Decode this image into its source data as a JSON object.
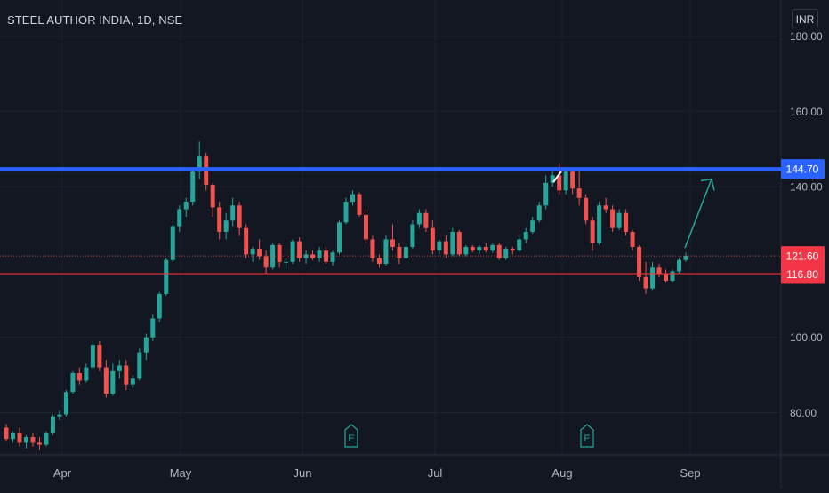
{
  "header": {
    "symbol_title": "STEEL AUTHOR INDIA, 1D, NSE",
    "currency": "INR"
  },
  "colors": {
    "background": "#131722",
    "grid": "#1e222d",
    "text": "#d1d4dc",
    "up": "#26a69a",
    "down": "#ef5350",
    "resistance_line": "#2962ff",
    "support_line": "#f23645",
    "arrow": "#26a69a"
  },
  "chart_data": {
    "type": "candlestick",
    "ylim": [
      70,
      178
    ],
    "y_ticks": [
      "180.00",
      "160.00",
      "140.00",
      "100.00",
      "80.00"
    ],
    "x_ticks": [
      "Apr",
      "May",
      "Jun",
      "Jul",
      "Aug",
      "Sep"
    ],
    "grid": true,
    "price_labels": [
      {
        "text": "144.70",
        "value": 144.7,
        "kind": "resistance"
      },
      {
        "text": "121.60",
        "value": 121.6,
        "kind": "last"
      },
      {
        "text": "116.80",
        "value": 116.8,
        "kind": "support"
      }
    ],
    "horizontal_lines": [
      {
        "value": 144.7,
        "kind": "resistance"
      },
      {
        "value": 116.8,
        "kind": "support"
      }
    ],
    "earnings_markers": [
      {
        "label": "E",
        "position": "mid-May"
      },
      {
        "label": "E",
        "position": "mid-Aug"
      }
    ],
    "projection_arrow": {
      "from": 121.6,
      "to": 142.5
    },
    "candles": [
      [
        76,
        77,
        72.5,
        73
      ],
      [
        73,
        75,
        72,
        74.5
      ],
      [
        74.5,
        76,
        71,
        72
      ],
      [
        72,
        74,
        70.5,
        73.5
      ],
      [
        73.5,
        74.5,
        71,
        72
      ],
      [
        72,
        73.5,
        70,
        71.5
      ],
      [
        71.5,
        75,
        71,
        74.5
      ],
      [
        74.5,
        79.5,
        74,
        79
      ],
      [
        79,
        80.5,
        78,
        79.5
      ],
      [
        79.5,
        86,
        79,
        85.5
      ],
      [
        85.5,
        91,
        85,
        90.5
      ],
      [
        90.5,
        92,
        87.5,
        88.5
      ],
      [
        88.5,
        93,
        88,
        92
      ],
      [
        92,
        99,
        91.5,
        98
      ],
      [
        98,
        99,
        91,
        92
      ],
      [
        92,
        94,
        84,
        85
      ],
      [
        85,
        93,
        84.5,
        91
      ],
      [
        91,
        94,
        89,
        92.5
      ],
      [
        92.5,
        94,
        86,
        87.5
      ],
      [
        87.5,
        90,
        86.5,
        89
      ],
      [
        89,
        97,
        88.5,
        96
      ],
      [
        96,
        101,
        94,
        100
      ],
      [
        100,
        106,
        99,
        105
      ],
      [
        105,
        112,
        104,
        111.5
      ],
      [
        111.5,
        121,
        111,
        120.5
      ],
      [
        120.5,
        130,
        120,
        129.5
      ],
      [
        129.5,
        135,
        128,
        134
      ],
      [
        134,
        137,
        132,
        136
      ],
      [
        136,
        145,
        135,
        144
      ],
      [
        144,
        152,
        142,
        148
      ],
      [
        148,
        149,
        139,
        140.5
      ],
      [
        140.5,
        141,
        132,
        134.5
      ],
      [
        134.5,
        136,
        126,
        128
      ],
      [
        128,
        133,
        126,
        131
      ],
      [
        131,
        137,
        129.5,
        135
      ],
      [
        135,
        136,
        127,
        129
      ],
      [
        129,
        130,
        121,
        122
      ],
      [
        122,
        124,
        120,
        123.5
      ],
      [
        123.5,
        126,
        120.5,
        121.5
      ],
      [
        121.5,
        123,
        117,
        118.5
      ],
      [
        118.5,
        125,
        118,
        124.5
      ],
      [
        124.5,
        125,
        118.5,
        120
      ],
      [
        120,
        121,
        118,
        120
      ],
      [
        120,
        126,
        119.5,
        125.5
      ],
      [
        125.5,
        126.5,
        120,
        121
      ],
      [
        121,
        123,
        119.5,
        122
      ],
      [
        122,
        123,
        120.5,
        121
      ],
      [
        121,
        124,
        120,
        123
      ],
      [
        123,
        124,
        119.5,
        120
      ],
      [
        120,
        123,
        119,
        122.5
      ],
      [
        122.5,
        131,
        122,
        130.5
      ],
      [
        130.5,
        137,
        130,
        136
      ],
      [
        136,
        139,
        135,
        138
      ],
      [
        138,
        138.5,
        132,
        132.5
      ],
      [
        132.5,
        134,
        125,
        126
      ],
      [
        126,
        127,
        120,
        121
      ],
      [
        121,
        122,
        118.5,
        119.5
      ],
      [
        119.5,
        127,
        119,
        126
      ],
      [
        126,
        130,
        123,
        124
      ],
      [
        124,
        125,
        119.5,
        121
      ],
      [
        121,
        124.5,
        120.5,
        124
      ],
      [
        124,
        131,
        123.5,
        130
      ],
      [
        130,
        134,
        129,
        133
      ],
      [
        133,
        134,
        128,
        129
      ],
      [
        129,
        131,
        122,
        123
      ],
      [
        123,
        126,
        122,
        125.5
      ],
      [
        125.5,
        127,
        121,
        122
      ],
      [
        122,
        129,
        121.5,
        128
      ],
      [
        128,
        128.5,
        121.5,
        122
      ],
      [
        122,
        124.5,
        121.5,
        124
      ],
      [
        124,
        124.5,
        122.5,
        123
      ],
      [
        123,
        124.5,
        122,
        124
      ],
      [
        124,
        125,
        122.5,
        123
      ],
      [
        123,
        125,
        122.5,
        124.5
      ],
      [
        124.5,
        125,
        120.5,
        121
      ],
      [
        121,
        124,
        120.5,
        123.5
      ],
      [
        123.5,
        124,
        122,
        123
      ],
      [
        123,
        127,
        122.5,
        126
      ],
      [
        126,
        129,
        125,
        128
      ],
      [
        128,
        132,
        127.5,
        131
      ],
      [
        131,
        136,
        130.5,
        135
      ],
      [
        135,
        143,
        134,
        141
      ],
      [
        141,
        144,
        140,
        143
      ],
      [
        143,
        146,
        138,
        139
      ],
      [
        139,
        145,
        138,
        144
      ],
      [
        144,
        145,
        138,
        139.5
      ],
      [
        139.5,
        145,
        135,
        137
      ],
      [
        137,
        138,
        130,
        131
      ],
      [
        131,
        132,
        123,
        125
      ],
      [
        125,
        136,
        124.5,
        135
      ],
      [
        135,
        137,
        133,
        134
      ],
      [
        134,
        135,
        128,
        129
      ],
      [
        129,
        134,
        128.5,
        133
      ],
      [
        133,
        134,
        127,
        128
      ],
      [
        128,
        128.5,
        123,
        124
      ],
      [
        124,
        124.5,
        115,
        116
      ],
      [
        116,
        120,
        111.5,
        113
      ],
      [
        113,
        120,
        112.5,
        118.5
      ],
      [
        118.5,
        119.5,
        116,
        117
      ],
      [
        117,
        118,
        114.5,
        115
      ],
      [
        115,
        118,
        114.5,
        117.5
      ],
      [
        117.5,
        121,
        117,
        120.5
      ],
      [
        120.5,
        122.5,
        120,
        121.6
      ]
    ]
  }
}
